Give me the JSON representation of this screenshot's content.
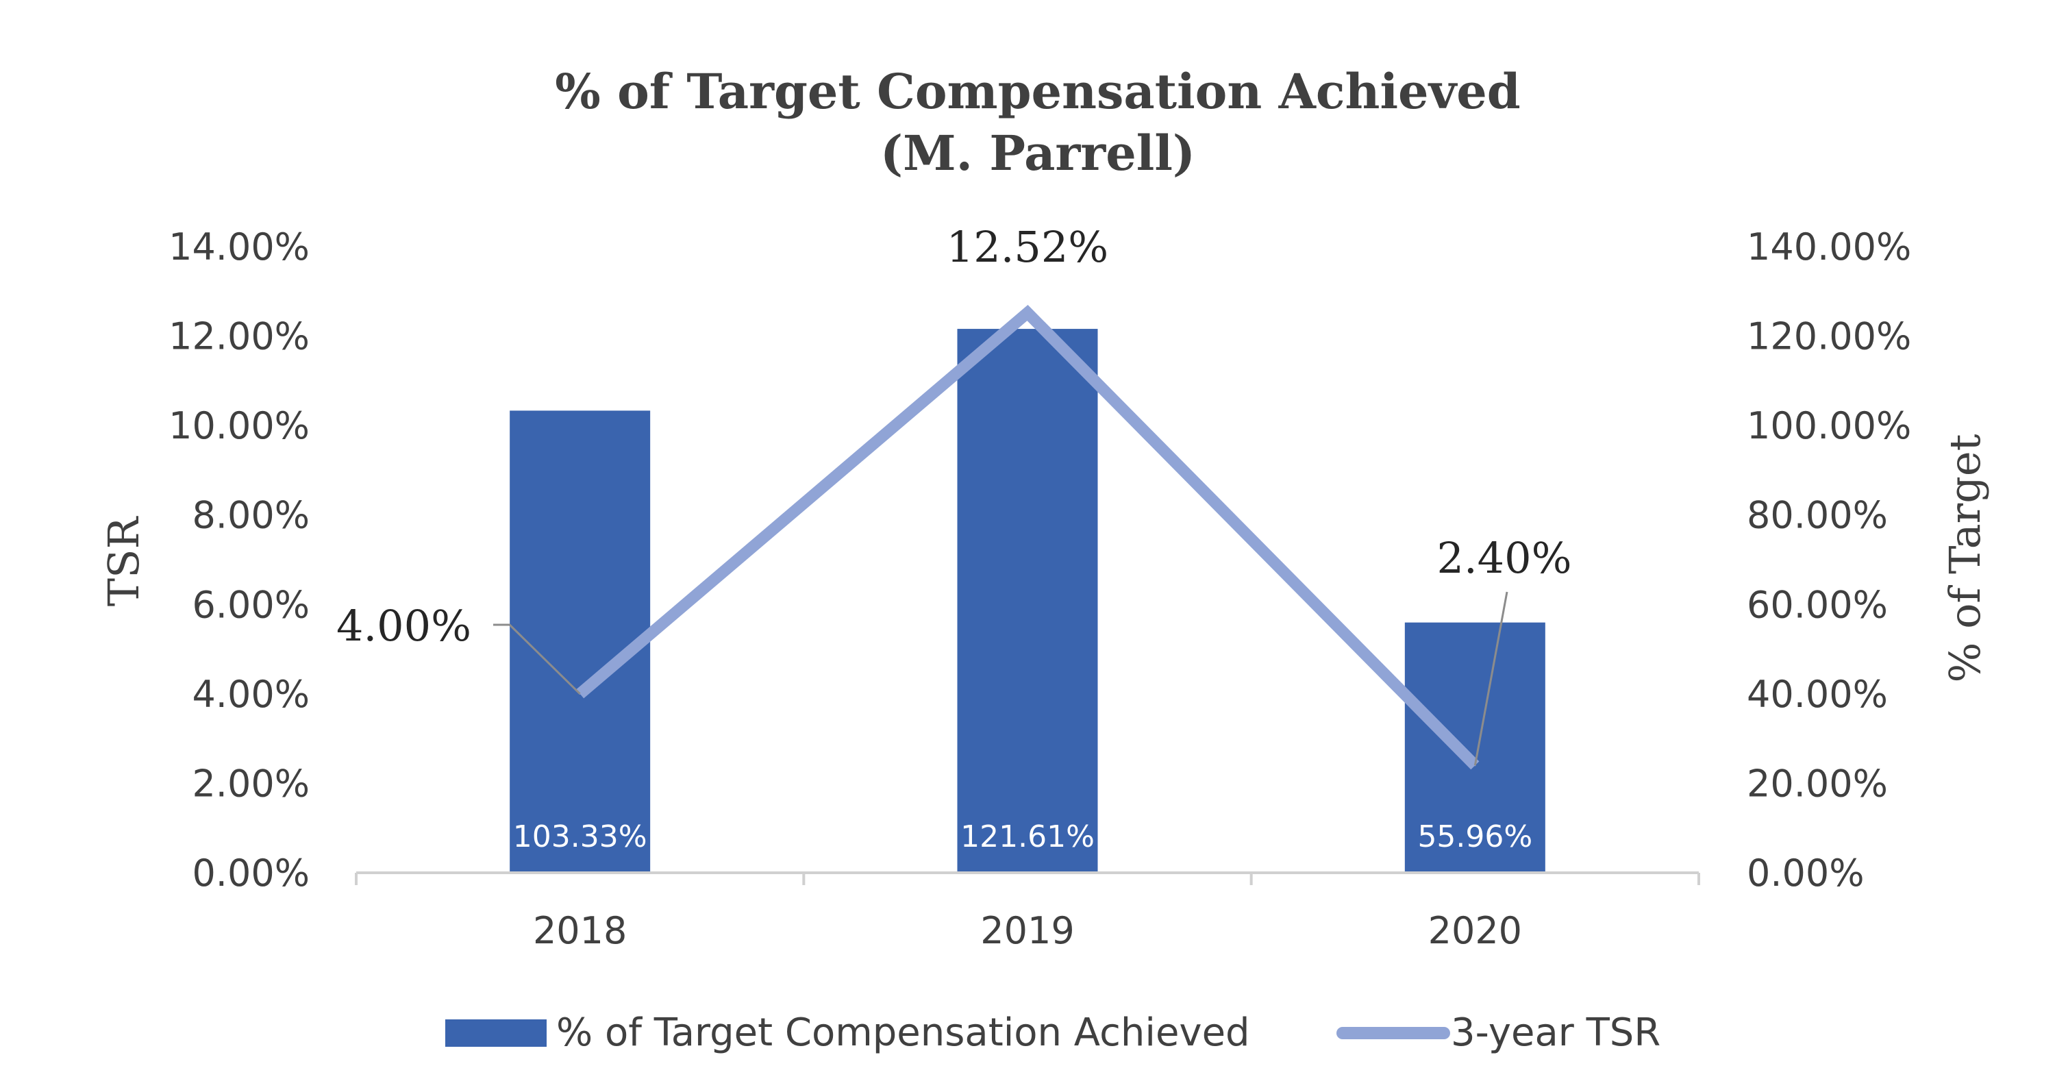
{
  "colors": {
    "bar": "#3A64AE",
    "line": "#90A4D6",
    "axis": "#D0D0D0",
    "leader": "#8C8C8C",
    "text": "#404040"
  },
  "chart_data": {
    "type": "bar",
    "title": "% of Target Compensation Achieved",
    "subtitle": "(M. Parrell)",
    "categories": [
      "2018",
      "2019",
      "2020"
    ],
    "series": [
      {
        "name": "% of Target Compensation Achieved",
        "chart_kind": "bar",
        "axis": "right",
        "values": [
          103.33,
          121.61,
          55.96
        ],
        "labels": [
          "103.33%",
          "121.61%",
          "55.96%"
        ]
      },
      {
        "name": "3-year TSR",
        "chart_kind": "line",
        "axis": "left",
        "values": [
          4.0,
          12.52,
          2.4
        ],
        "labels": [
          "4.00%",
          "12.52%",
          "2.40%"
        ]
      }
    ],
    "ylabel": "TSR",
    "ylabel_right": "% of Target",
    "ylim": [
      0,
      14
    ],
    "ylim_right": [
      0,
      140
    ],
    "yticks": [
      "0.00%",
      "2.00%",
      "4.00%",
      "6.00%",
      "8.00%",
      "10.00%",
      "12.00%",
      "14.00%"
    ],
    "yticks_right": [
      "0.00%",
      "20.00%",
      "40.00%",
      "60.00%",
      "80.00%",
      "100.00%",
      "120.00%",
      "140.00%"
    ],
    "legend_position": "bottom",
    "grid": false
  }
}
